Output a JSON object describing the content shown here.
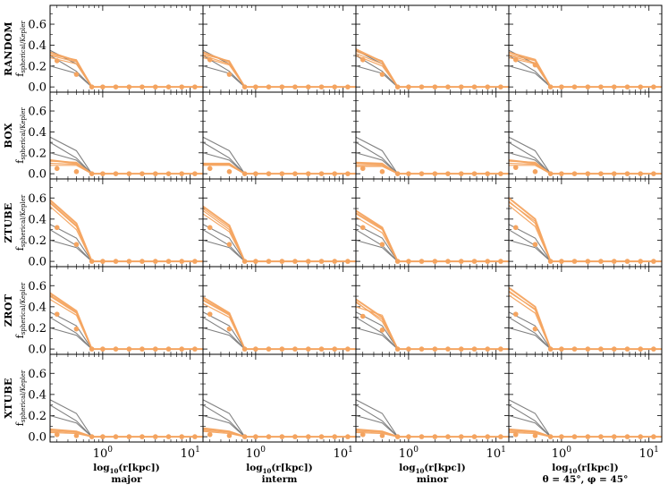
{
  "chart_data": {
    "type": "line",
    "layout": "small-multiples 5x4",
    "xscale": "log",
    "xlim": [
      0.25,
      14
    ],
    "ylim": [
      -0.05,
      0.78
    ],
    "grid": false,
    "legend": "none",
    "colors": {
      "model": "#f4a460",
      "reference": "#808080"
    },
    "rows": [
      "RANDOM",
      "BOX",
      "ZTUBE",
      "ZROT",
      "XTUBE"
    ],
    "columns": [
      "major",
      "interm",
      "minor",
      "θ = 45°, φ = 45°"
    ],
    "ylabel": "f_spherical/Kepler",
    "ylabel_main": "f",
    "ylabel_sub": "spherical/Kepler",
    "xlabel": "log10(r[kpc])",
    "xlabel_pre": "log",
    "xlabel_sub": "10",
    "xlabel_post": "(r[kpc])",
    "x_ticks": [
      {
        "value": 1,
        "base": "10",
        "exp": "0"
      },
      {
        "value": 10,
        "base": "10",
        "exp": "1"
      }
    ],
    "y_ticks": [
      "0.0",
      "0.2",
      "0.4",
      "0.6"
    ],
    "y_tick_values": [
      0.0,
      0.2,
      0.4,
      0.6
    ],
    "reference_x": [
      0.25,
      0.5,
      0.75
    ],
    "reference_lines": [
      [
        0.35,
        0.22,
        0.0
      ],
      [
        0.3,
        0.15,
        0.0
      ],
      [
        0.2,
        0.13,
        0.0
      ]
    ],
    "model_x": [
      0.25,
      0.5,
      0.75
    ],
    "dot_x": [
      0.3,
      0.5,
      0.75,
      1.0,
      1.41,
      2.0,
      2.82,
      4.0,
      5.66,
      8.0,
      11.3
    ],
    "panels": [
      [
        {
          "lines": [
            [
              0.33,
              0.25,
              0.0
            ],
            [
              0.3,
              0.24,
              0.0
            ],
            [
              0.28,
              0.22,
              0.0
            ],
            [
              0.31,
              0.26,
              0.0
            ]
          ],
          "dots": [
            0.25,
            0.12,
            0,
            0,
            0,
            0,
            0,
            0,
            0,
            0,
            0
          ]
        },
        {
          "lines": [
            [
              0.33,
              0.24,
              0.0
            ],
            [
              0.3,
              0.22,
              0.0
            ],
            [
              0.28,
              0.21,
              0.0
            ],
            [
              0.31,
              0.25,
              0.0
            ]
          ],
          "dots": [
            0.26,
            0.12,
            0,
            0,
            0,
            0,
            0,
            0,
            0,
            0,
            0
          ]
        },
        {
          "lines": [
            [
              0.36,
              0.24,
              0.0
            ],
            [
              0.32,
              0.22,
              0.0
            ],
            [
              0.3,
              0.2,
              0.0
            ],
            [
              0.34,
              0.25,
              0.0
            ]
          ],
          "dots": [
            0.26,
            0.12,
            0,
            0,
            0,
            0,
            0,
            0,
            0,
            0,
            0
          ]
        },
        {
          "lines": [
            [
              0.33,
              0.26,
              0.0
            ],
            [
              0.3,
              0.23,
              0.0
            ],
            [
              0.28,
              0.22,
              0.0
            ],
            [
              0.31,
              0.25,
              0.0
            ]
          ],
          "dots": [
            0.26,
            0.21,
            0,
            0,
            0,
            0,
            0,
            0,
            0,
            0,
            0
          ]
        }
      ],
      [
        {
          "lines": [
            [
              0.13,
              0.1,
              0.0
            ],
            [
              0.1,
              0.09,
              0.0
            ],
            [
              0.08,
              0.08,
              0.0
            ],
            [
              0.12,
              0.11,
              0.0
            ]
          ],
          "dots": [
            0.05,
            0.02,
            0,
            0,
            0,
            0,
            0,
            0,
            0,
            0,
            0
          ]
        },
        {
          "lines": [
            [
              0.09,
              0.09,
              0.0
            ],
            [
              0.08,
              0.08,
              0.0
            ],
            [
              0.1,
              0.1,
              0.0
            ],
            [
              0.09,
              0.09,
              0.0
            ]
          ],
          "dots": [
            0.05,
            0.02,
            0,
            0,
            0,
            0,
            0,
            0,
            0,
            0,
            0
          ]
        },
        {
          "lines": [
            [
              0.1,
              0.09,
              0.0
            ],
            [
              0.08,
              0.08,
              0.0
            ],
            [
              0.07,
              0.07,
              0.0
            ],
            [
              0.11,
              0.1,
              0.0
            ]
          ],
          "dots": [
            0.05,
            0.02,
            0,
            0,
            0,
            0,
            0,
            0,
            0,
            0,
            0
          ]
        },
        {
          "lines": [
            [
              0.13,
              0.1,
              0.0
            ],
            [
              0.1,
              0.09,
              0.0
            ],
            [
              0.08,
              0.08,
              0.0
            ],
            [
              0.12,
              0.11,
              0.0
            ]
          ],
          "dots": [
            0.06,
            0.02,
            0,
            0,
            0,
            0,
            0,
            0,
            0,
            0,
            0
          ]
        }
      ],
      [
        {
          "lines": [
            [
              0.58,
              0.36,
              0.0
            ],
            [
              0.55,
              0.33,
              0.0
            ],
            [
              0.52,
              0.3,
              0.0
            ],
            [
              0.56,
              0.34,
              0.0
            ]
          ],
          "dots": [
            0.32,
            0.16,
            0,
            0,
            0,
            0,
            0,
            0,
            0,
            0,
            0
          ]
        },
        {
          "lines": [
            [
              0.52,
              0.34,
              0.0
            ],
            [
              0.48,
              0.3,
              0.0
            ],
            [
              0.45,
              0.28,
              0.0
            ],
            [
              0.5,
              0.32,
              0.0
            ]
          ],
          "dots": [
            0.32,
            0.16,
            0,
            0,
            0,
            0,
            0,
            0,
            0,
            0,
            0
          ]
        },
        {
          "lines": [
            [
              0.48,
              0.32,
              0.0
            ],
            [
              0.45,
              0.3,
              0.0
            ],
            [
              0.42,
              0.27,
              0.0
            ],
            [
              0.46,
              0.31,
              0.0
            ]
          ],
          "dots": [
            0.32,
            0.16,
            0,
            0,
            0,
            0,
            0,
            0,
            0,
            0,
            0
          ]
        },
        {
          "lines": [
            [
              0.6,
              0.4,
              0.0
            ],
            [
              0.57,
              0.36,
              0.0
            ],
            [
              0.53,
              0.33,
              0.0
            ],
            [
              0.56,
              0.38,
              0.0
            ]
          ],
          "dots": [
            0.32,
            0.16,
            0,
            0,
            0,
            0,
            0,
            0,
            0,
            0,
            0
          ]
        }
      ],
      [
        {
          "lines": [
            [
              0.53,
              0.36,
              0.0
            ],
            [
              0.5,
              0.34,
              0.0
            ],
            [
              0.47,
              0.32,
              0.0
            ],
            [
              0.51,
              0.35,
              0.0
            ]
          ],
          "dots": [
            0.33,
            0.19,
            0,
            0,
            0,
            0,
            0,
            0,
            0,
            0,
            0
          ]
        },
        {
          "lines": [
            [
              0.49,
              0.34,
              0.0
            ],
            [
              0.46,
              0.32,
              0.0
            ],
            [
              0.43,
              0.3,
              0.0
            ],
            [
              0.47,
              0.33,
              0.0
            ]
          ],
          "dots": [
            0.33,
            0.19,
            0,
            0,
            0,
            0,
            0,
            0,
            0,
            0,
            0
          ]
        },
        {
          "lines": [
            [
              0.47,
              0.3,
              0.0
            ],
            [
              0.44,
              0.28,
              0.0
            ],
            [
              0.4,
              0.32,
              0.0
            ],
            [
              0.45,
              0.26,
              0.0
            ]
          ],
          "dots": [
            0.31,
            0.18,
            0,
            0,
            0,
            0,
            0,
            0,
            0,
            0,
            0
          ]
        },
        {
          "lines": [
            [
              0.58,
              0.4,
              0.0
            ],
            [
              0.55,
              0.37,
              0.0
            ],
            [
              0.51,
              0.34,
              0.0
            ],
            [
              0.54,
              0.38,
              0.0
            ]
          ],
          "dots": [
            0.33,
            0.19,
            0,
            0,
            0,
            0,
            0,
            0,
            0,
            0,
            0
          ]
        }
      ],
      [
        {
          "lines": [
            [
              0.07,
              0.05,
              0.0
            ],
            [
              0.05,
              0.04,
              0.0
            ],
            [
              0.04,
              0.03,
              0.0
            ],
            [
              0.06,
              0.05,
              0.0
            ]
          ],
          "dots": [
            0.02,
            0.01,
            0,
            0,
            0,
            0,
            0,
            0,
            0,
            0,
            0
          ]
        },
        {
          "lines": [
            [
              0.08,
              0.05,
              0.0
            ],
            [
              0.06,
              0.04,
              0.0
            ],
            [
              0.05,
              0.03,
              0.0
            ],
            [
              0.07,
              0.05,
              0.0
            ]
          ],
          "dots": [
            0.02,
            0.01,
            0,
            0,
            0,
            0,
            0,
            0,
            0,
            0,
            0
          ]
        },
        {
          "lines": [
            [
              0.07,
              0.05,
              0.0
            ],
            [
              0.05,
              0.04,
              0.0
            ],
            [
              0.04,
              0.03,
              0.0
            ],
            [
              0.06,
              0.05,
              0.0
            ]
          ],
          "dots": [
            0.02,
            0.01,
            0,
            0,
            0,
            0,
            0,
            0,
            0,
            0,
            0
          ]
        },
        {
          "lines": [
            [
              0.07,
              0.05,
              0.0
            ],
            [
              0.05,
              0.04,
              0.0
            ],
            [
              0.04,
              0.03,
              0.0
            ],
            [
              0.06,
              0.05,
              0.0
            ]
          ],
          "dots": [
            0.02,
            0.01,
            0,
            0,
            0,
            0,
            0,
            0,
            0,
            0,
            0
          ]
        }
      ]
    ]
  }
}
